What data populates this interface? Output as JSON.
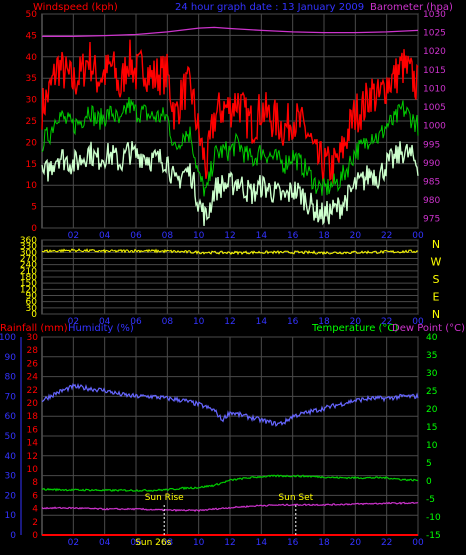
{
  "header": {
    "left_title": "Windspeed (kph)",
    "center_title": "24 hour graph date : 13 January 2009",
    "right_title": "Barometer (hpa)"
  },
  "colors": {
    "background": "#000000",
    "grid": "#4a4a4a",
    "wind_gust": "#ff0000",
    "wind_avg": "#00cc00",
    "wind_min": "#ccffcc",
    "barometer": "#cc33cc",
    "direction": "#ffff00",
    "humidity": "#6666ff",
    "temperature": "#00cc00",
    "dew_point": "#cc33cc",
    "rainfall": "#ff0000",
    "text_red": "#ff0000",
    "text_blue": "#3333ff",
    "text_green": "#00ff00",
    "text_purple": "#cc33cc",
    "text_yellow": "#ffff00"
  },
  "panel3_labels": {
    "rainfall": "Rainfall (mm)",
    "humidity": "Humidity (%)",
    "temperature": "Temperature (°C)",
    "dew_point": "Dew Point (°C)"
  },
  "chart_data": [
    {
      "type": "line",
      "title": "24 hour graph date : 13 January 2009",
      "x_ticks": [
        "02",
        "04",
        "06",
        "08",
        "10",
        "12",
        "14",
        "16",
        "18",
        "20",
        "22",
        "00"
      ],
      "y_left": {
        "label": "Windspeed (kph)",
        "ticks": [
          0,
          5,
          10,
          15,
          20,
          25,
          30,
          35,
          40,
          45,
          50
        ],
        "range": [
          0,
          50
        ]
      },
      "y_right": {
        "label": "Barometer (hpa)",
        "ticks": [
          975,
          980,
          985,
          990,
          995,
          1000,
          1005,
          1010,
          1015,
          1020,
          1025,
          1030
        ],
        "range": [
          972.5,
          1030
        ]
      },
      "series": [
        {
          "name": "wind gust",
          "axis": "left",
          "x": [
            0,
            0.5,
            1,
            1.5,
            2,
            2.5,
            3,
            3.5,
            4,
            4.5,
            5,
            5.5,
            6,
            6.5,
            7,
            7.5,
            8,
            8.5,
            9,
            9.5,
            10,
            10.5,
            11,
            11.5,
            12,
            12.5,
            13,
            13.5,
            14,
            14.5,
            15,
            15.5,
            16,
            16.5,
            17,
            17.5,
            18,
            18.5,
            19,
            19.5,
            20,
            20.5,
            21,
            21.5,
            22,
            22.5,
            23,
            23.5,
            24
          ],
          "values": [
            28,
            32,
            38,
            36,
            34,
            36,
            40,
            35,
            36,
            38,
            32,
            40,
            36,
            38,
            35,
            36,
            36,
            26,
            32,
            33,
            22,
            14,
            26,
            28,
            28,
            30,
            26,
            24,
            28,
            26,
            25,
            23,
            26,
            24,
            22,
            16,
            15,
            14,
            16,
            22,
            27,
            28,
            32,
            30,
            34,
            35,
            38,
            36,
            33
          ]
        },
        {
          "name": "wind average",
          "axis": "left",
          "x": [
            0,
            0.5,
            1,
            1.5,
            2,
            2.5,
            3,
            3.5,
            4,
            4.5,
            5,
            5.5,
            6,
            6.5,
            7,
            7.5,
            8,
            8.5,
            9,
            9.5,
            10,
            10.5,
            11,
            11.5,
            12,
            12.5,
            13,
            13.5,
            14,
            14.5,
            15,
            15.5,
            16,
            16.5,
            17,
            17.5,
            18,
            18.5,
            19,
            19.5,
            20,
            20.5,
            21,
            21.5,
            22,
            22.5,
            23,
            23.5,
            24
          ],
          "values": [
            20,
            22,
            27,
            25,
            24,
            25,
            28,
            25,
            26,
            27,
            24,
            29,
            27,
            27,
            26,
            26,
            26,
            18,
            22,
            22,
            12,
            8,
            17,
            18,
            18,
            20,
            17,
            16,
            18,
            17,
            16,
            15,
            17,
            15,
            13,
            10,
            9,
            10,
            11,
            14,
            18,
            19,
            22,
            21,
            24,
            25,
            28,
            26,
            24
          ]
        },
        {
          "name": "wind minimum",
          "axis": "left",
          "x": [
            0,
            0.5,
            1,
            1.5,
            2,
            2.5,
            3,
            3.5,
            4,
            4.5,
            5,
            5.5,
            6,
            6.5,
            7,
            7.5,
            8,
            8.5,
            9,
            9.5,
            10,
            10.5,
            11,
            11.5,
            12,
            12.5,
            13,
            13.5,
            14,
            14.5,
            15,
            15.5,
            16,
            16.5,
            17,
            17.5,
            18,
            18.5,
            19,
            19.5,
            20,
            20.5,
            21,
            21.5,
            22,
            22.5,
            23,
            23.5,
            24
          ],
          "values": [
            12,
            14,
            17,
            16,
            15,
            16,
            18,
            16,
            17,
            17,
            15,
            18,
            17,
            17,
            16,
            16,
            16,
            10,
            13,
            13,
            6,
            2,
            9,
            10,
            10,
            11,
            9,
            8,
            10,
            9,
            8,
            7,
            9,
            8,
            6,
            4,
            3,
            4,
            5,
            7,
            10,
            11,
            13,
            12,
            15,
            16,
            18,
            17,
            15
          ]
        },
        {
          "name": "barometer",
          "axis": "right",
          "x": [
            0,
            2,
            4,
            6,
            8,
            10,
            11,
            12,
            14,
            16,
            18,
            20,
            22,
            24
          ],
          "values": [
            1024,
            1024,
            1024.2,
            1024.5,
            1025.2,
            1026.2,
            1026.4,
            1026.1,
            1025.6,
            1025.2,
            1025,
            1025,
            1025.2,
            1025.6
          ]
        }
      ]
    },
    {
      "type": "line",
      "x_ticks": [
        "02",
        "04",
        "06",
        "08",
        "10",
        "12",
        "14",
        "16",
        "18",
        "20",
        "22",
        "00"
      ],
      "y_left": {
        "ticks": [
          0,
          30,
          60,
          90,
          120,
          150,
          180,
          210,
          240,
          270,
          300,
          330,
          360
        ],
        "range": [
          0,
          360
        ]
      },
      "y_right": {
        "ticks": [
          "N",
          "W",
          "S",
          "E",
          "N"
        ]
      },
      "series": [
        {
          "name": "wind direction",
          "x": [
            0,
            2,
            4,
            6,
            8,
            10,
            12,
            14,
            16,
            18,
            20,
            22,
            24
          ],
          "values": [
            305,
            310,
            305,
            308,
            305,
            300,
            298,
            300,
            300,
            298,
            300,
            302,
            305
          ]
        }
      ]
    },
    {
      "type": "line",
      "x_ticks": [
        "02",
        "04",
        "06",
        "08",
        "10",
        "12",
        "14",
        "16",
        "18",
        "20",
        "22",
        "00"
      ],
      "y_left_outer": {
        "label": "Humidity (%)",
        "ticks": [
          0,
          10,
          20,
          30,
          40,
          50,
          60,
          70,
          80,
          90,
          100
        ],
        "range": [
          0,
          100
        ]
      },
      "y_left_inner": {
        "label": "Rainfall (mm)",
        "ticks": [
          0,
          2,
          4,
          6,
          8,
          10,
          12,
          14,
          16,
          18,
          20,
          22,
          24,
          26,
          28,
          30
        ],
        "range": [
          0,
          30
        ]
      },
      "y_right": {
        "label": "Temperature (°C)",
        "ticks": [
          -15,
          -10,
          -5,
          0,
          5,
          10,
          15,
          20,
          25,
          30,
          35,
          40
        ],
        "range": [
          -15,
          40
        ]
      },
      "series": [
        {
          "name": "humidity",
          "axis": "left_outer",
          "x": [
            0,
            1,
            2,
            3,
            4,
            5,
            6,
            7,
            8,
            9,
            10,
            11,
            11.5,
            12,
            13,
            14,
            15,
            15.5,
            16,
            17,
            18,
            19,
            20,
            21,
            22,
            23,
            24
          ],
          "values": [
            68,
            72,
            75,
            74,
            73,
            71,
            70,
            70,
            69,
            68,
            66,
            63,
            58,
            62,
            60,
            58,
            56,
            57,
            60,
            62,
            64,
            66,
            68,
            69,
            69,
            70,
            70
          ]
        },
        {
          "name": "temperature",
          "axis": "right",
          "x": [
            0,
            1,
            2,
            3,
            4,
            5,
            6,
            7,
            8,
            9,
            10,
            11,
            12,
            13,
            14,
            15,
            16,
            17,
            18,
            19,
            20,
            21,
            22,
            23,
            24
          ],
          "values": [
            -2.3,
            -2.4,
            -2.5,
            -2.5,
            -2.6,
            -2.6,
            -2.6,
            -2.6,
            -2.4,
            -2,
            -1.8,
            -1.2,
            0.2,
            0.8,
            1.2,
            1.4,
            1.4,
            1.3,
            1.1,
            0.9,
            0.9,
            0.9,
            0.9,
            0.4,
            0.2
          ]
        },
        {
          "name": "dew point",
          "axis": "right",
          "x": [
            0,
            2,
            4,
            6,
            8,
            10,
            12,
            14,
            16,
            18,
            20,
            22,
            24
          ],
          "values": [
            -7.5,
            -7.5,
            -7.8,
            -7.8,
            -8.1,
            -8.2,
            -7.4,
            -6.8,
            -6.6,
            -6.6,
            -6.4,
            -6.2,
            -6.1
          ]
        },
        {
          "name": "rainfall",
          "axis": "left_inner",
          "x": [
            0,
            24
          ],
          "values": [
            0,
            0
          ]
        }
      ],
      "annotations": [
        {
          "text": "Sun Rise",
          "x": 7.8
        },
        {
          "text": "Sun Set",
          "x": 16.2
        }
      ],
      "x_footer": "Sun 26s"
    }
  ]
}
